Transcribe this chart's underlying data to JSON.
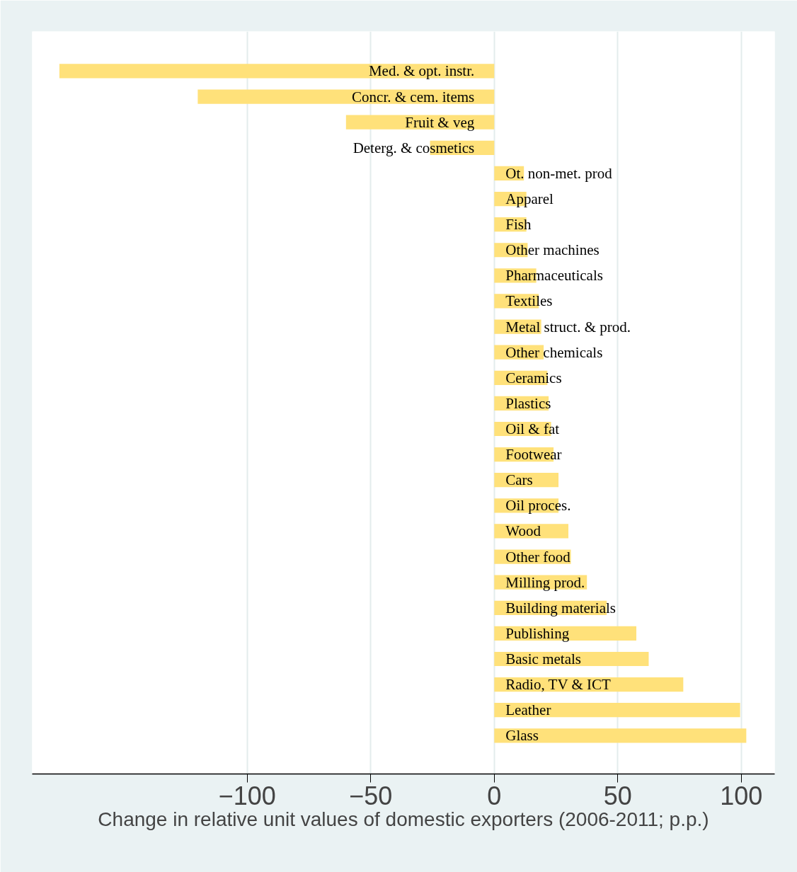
{
  "chart_data": {
    "type": "bar",
    "orientation": "horizontal",
    "xlabel": "Change in relative unit values of domestic exporters (2006-2011; p.p.)",
    "categories": [
      "Med. & opt. instr.",
      "Concr. & cem. items",
      "Fruit & veg",
      "Deterg. & cosmetics",
      "Ot. non-met. prod",
      "Apparel",
      "Fish",
      "Other machines",
      "Pharmaceuticals",
      "Textiles",
      "Metal struct. & prod.",
      "Other chemicals",
      "Ceramics",
      "Plastics",
      "Oil & fat",
      "Footwear",
      "Cars",
      "Oil proces.",
      "Wood",
      "Other food",
      "Milling prod.",
      "Building materials",
      "Publishing",
      "Basic metals",
      "Radio, TV & ICT",
      "Leather",
      "Glass"
    ],
    "values": [
      -176,
      -120,
      -60,
      -26,
      12,
      13,
      13,
      13.5,
      17,
      18,
      19,
      20,
      21.5,
      22,
      23,
      24,
      26,
      26,
      30,
      31,
      37.5,
      45.5,
      57.5,
      62.5,
      76.5,
      99.5,
      102
    ],
    "color": "#ffe17a",
    "xlim": [
      -187,
      113.5
    ],
    "xticks": [
      -100,
      -50,
      0,
      50,
      100
    ],
    "grid": "x",
    "tick_labels": "x"
  }
}
